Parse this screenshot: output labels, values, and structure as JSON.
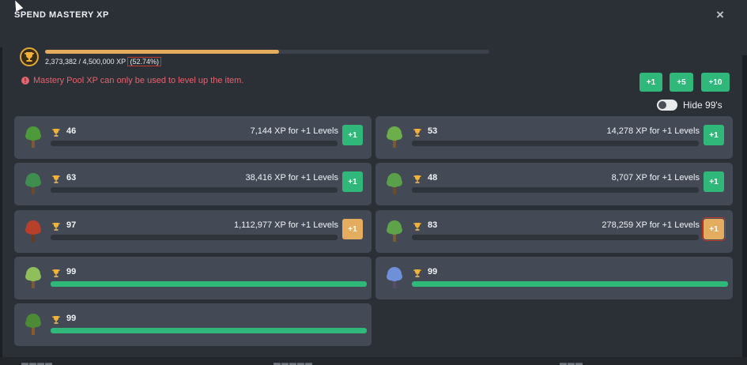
{
  "modal": {
    "title": "SPEND MASTERY XP",
    "close_icon": "×"
  },
  "pool": {
    "progress_pct": 52.74,
    "xp_text": "2,373,382 / 4,500,000 XP",
    "pct_text": "(52.74%)",
    "warning": "Mastery Pool XP can only be used to level up the item.",
    "warning_icon": "!"
  },
  "increment_buttons": [
    "+1",
    "+5",
    "+10"
  ],
  "hide_toggle": {
    "label": "Hide 99's",
    "on": false
  },
  "items": [
    {
      "level": "46",
      "xp_text": "7,144 XP for +1 Levels",
      "button": "+1",
      "button_style": "green",
      "icon": "tree-icon"
    },
    {
      "level": "53",
      "xp_text": "14,278 XP for +1 Levels",
      "button": "+1",
      "button_style": "green",
      "icon": "tree-icon"
    },
    {
      "level": "63",
      "xp_text": "38,416 XP for +1 Levels",
      "button": "+1",
      "button_style": "green",
      "icon": "tree-icon"
    },
    {
      "level": "48",
      "xp_text": "8,707 XP for +1 Levels",
      "button": "+1",
      "button_style": "green",
      "icon": "tree-icon"
    },
    {
      "level": "97",
      "xp_text": "1,112,977 XP for +1 Levels",
      "button": "+1",
      "button_style": "orange",
      "icon": "tree-icon"
    },
    {
      "level": "83",
      "xp_text": "278,259 XP for +1 Levels",
      "button": "+1",
      "button_style": "orange",
      "icon": "tree-icon"
    },
    {
      "level": "99",
      "icon": "tree-icon"
    },
    {
      "level": "99",
      "icon": "tree-icon"
    },
    {
      "level": "99",
      "icon": "tree-icon"
    }
  ],
  "colors": {
    "accent_green": "#30b87a",
    "accent_orange": "#e3ac5f",
    "warning_red": "#e6646e",
    "card_bg": "#434a56"
  }
}
